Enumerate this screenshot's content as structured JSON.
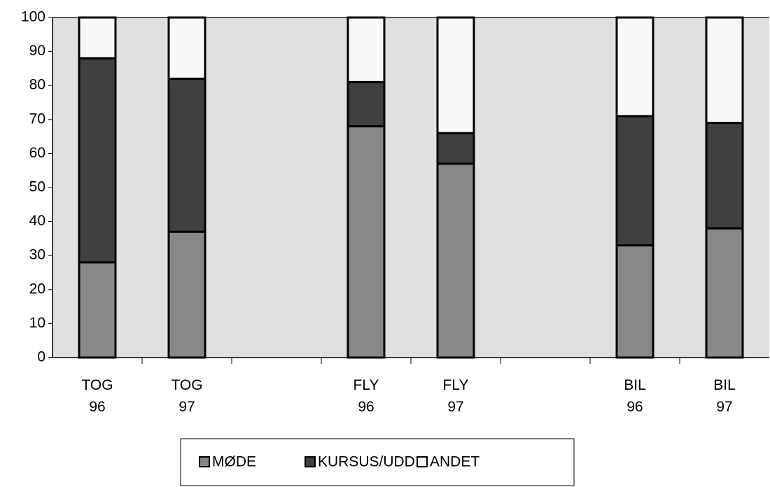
{
  "chart_data": {
    "type": "stacked_bar",
    "categories": [
      "TOG 96",
      "TOG 97",
      null,
      "FLY 96",
      "FLY 97",
      null,
      "BIL 96",
      "BIL 97"
    ],
    "series": [
      {
        "name": "MØDE",
        "color": "#888888",
        "values": [
          28,
          37,
          null,
          68,
          57,
          null,
          33,
          38
        ]
      },
      {
        "name": "KURSUS/UDD",
        "color": "#404040",
        "values": [
          60,
          45,
          null,
          13,
          9,
          null,
          38,
          31
        ]
      },
      {
        "name": "ANDET",
        "color": "#f8f8f8",
        "values": [
          12,
          18,
          null,
          19,
          34,
          null,
          29,
          31
        ]
      }
    ],
    "ylim": [
      0,
      100
    ],
    "yticks": [
      0,
      10,
      20,
      30,
      40,
      50,
      60,
      70,
      80,
      90,
      100
    ],
    "grid": false,
    "legend": "bottom"
  }
}
